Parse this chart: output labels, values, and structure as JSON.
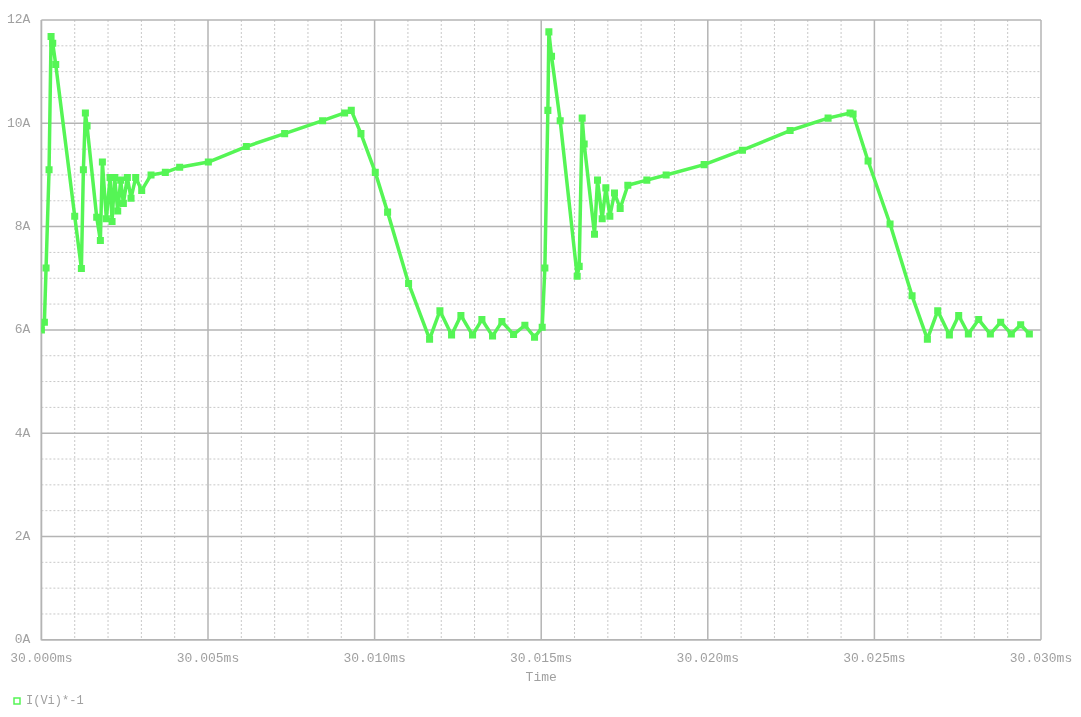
{
  "chart_data": {
    "type": "line",
    "xlabel": "Time",
    "x": [
      30.0,
      30.00009,
      30.00014,
      30.00023,
      30.00029,
      30.00034,
      30.00043,
      30.001,
      30.0012,
      30.00126,
      30.00132,
      30.00137,
      30.00166,
      30.00177,
      30.00183,
      30.00195,
      30.00206,
      30.00212,
      30.0022,
      30.00229,
      30.00238,
      30.00246,
      30.00258,
      30.00269,
      30.00283,
      30.00301,
      30.00329,
      30.00372,
      30.00415,
      30.00501,
      30.00615,
      30.0073,
      30.00844,
      30.0091,
      30.0093,
      30.00959,
      30.01002,
      30.01039,
      30.01102,
      30.01165,
      30.01196,
      30.01231,
      30.01259,
      30.01294,
      30.01322,
      30.01354,
      30.01382,
      30.01417,
      30.01451,
      30.0148,
      30.01503,
      30.01511,
      30.0152,
      30.01523,
      30.01531,
      30.01557,
      30.01608,
      30.01614,
      30.01623,
      30.01629,
      30.0166,
      30.01669,
      30.01683,
      30.01694,
      30.01706,
      30.0172,
      30.01737,
      30.0176,
      30.01817,
      30.01875,
      30.01989,
      30.02104,
      30.02247,
      30.02361,
      30.02427,
      30.02436,
      30.02481,
      30.02547,
      30.02613,
      30.02659,
      30.0269,
      30.02725,
      30.02753,
      30.02782,
      30.02813,
      30.02848,
      30.02879,
      30.02911,
      30.02939,
      30.02965
    ],
    "series": [
      {
        "name": "I(Vi)*-1",
        "color": "#55f555",
        "values": [
          6.0,
          6.15,
          7.2,
          9.1,
          11.68,
          11.55,
          11.14,
          8.2,
          7.19,
          9.1,
          10.2,
          9.95,
          8.18,
          7.73,
          9.25,
          8.15,
          8.95,
          8.1,
          8.95,
          8.3,
          8.9,
          8.45,
          8.95,
          8.55,
          8.95,
          8.7,
          9.0,
          9.05,
          9.15,
          9.25,
          9.55,
          9.8,
          10.05,
          10.2,
          10.25,
          9.8,
          9.05,
          8.28,
          6.9,
          5.82,
          6.37,
          5.9,
          6.28,
          5.9,
          6.2,
          5.88,
          6.16,
          5.91,
          6.09,
          5.86,
          6.05,
          7.2,
          10.25,
          11.77,
          11.3,
          10.05,
          7.04,
          7.23,
          10.1,
          9.6,
          7.85,
          8.9,
          8.15,
          8.75,
          8.2,
          8.65,
          8.35,
          8.8,
          8.9,
          9.0,
          9.2,
          9.48,
          9.86,
          10.1,
          10.2,
          10.18,
          9.27,
          8.05,
          6.66,
          5.82,
          6.37,
          5.9,
          6.28,
          5.92,
          6.2,
          5.92,
          6.15,
          5.92,
          6.1,
          5.92
        ]
      }
    ],
    "xlim": [
      30.0,
      30.03
    ],
    "xticks": [
      {
        "value": 30.0,
        "label": "30.000ms"
      },
      {
        "value": 30.001,
        "label": null
      },
      {
        "value": 30.002,
        "label": null
      },
      {
        "value": 30.003,
        "label": null
      },
      {
        "value": 30.004,
        "label": null
      },
      {
        "value": 30.005,
        "label": "30.005ms"
      },
      {
        "value": 30.006,
        "label": null
      },
      {
        "value": 30.007,
        "label": null
      },
      {
        "value": 30.008,
        "label": null
      },
      {
        "value": 30.009,
        "label": null
      },
      {
        "value": 30.01,
        "label": "30.010ms"
      },
      {
        "value": 30.011,
        "label": null
      },
      {
        "value": 30.012,
        "label": null
      },
      {
        "value": 30.013,
        "label": null
      },
      {
        "value": 30.014,
        "label": null
      },
      {
        "value": 30.015,
        "label": "30.015ms"
      },
      {
        "value": 30.016,
        "label": null
      },
      {
        "value": 30.017,
        "label": null
      },
      {
        "value": 30.018,
        "label": null
      },
      {
        "value": 30.019,
        "label": null
      },
      {
        "value": 30.02,
        "label": "30.020ms"
      },
      {
        "value": 30.021,
        "label": null
      },
      {
        "value": 30.022,
        "label": null
      },
      {
        "value": 30.023,
        "label": null
      },
      {
        "value": 30.024,
        "label": null
      },
      {
        "value": 30.025,
        "label": "30.025ms"
      },
      {
        "value": 30.026,
        "label": null
      },
      {
        "value": 30.027,
        "label": null
      },
      {
        "value": 30.028,
        "label": null
      },
      {
        "value": 30.029,
        "label": null
      },
      {
        "value": 30.03,
        "label": "30.030ms"
      }
    ],
    "ylim": [
      0,
      12
    ],
    "yticks": [
      {
        "value": 0,
        "label": "0A"
      },
      {
        "value": 0.5,
        "label": null
      },
      {
        "value": 1,
        "label": null
      },
      {
        "value": 1.5,
        "label": null
      },
      {
        "value": 2,
        "label": "2A"
      },
      {
        "value": 2.5,
        "label": null
      },
      {
        "value": 3,
        "label": null
      },
      {
        "value": 3.5,
        "label": null
      },
      {
        "value": 4,
        "label": "4A"
      },
      {
        "value": 4.5,
        "label": null
      },
      {
        "value": 5,
        "label": null
      },
      {
        "value": 5.5,
        "label": null
      },
      {
        "value": 6,
        "label": "6A"
      },
      {
        "value": 6.5,
        "label": null
      },
      {
        "value": 7,
        "label": null
      },
      {
        "value": 7.5,
        "label": null
      },
      {
        "value": 8,
        "label": "8A"
      },
      {
        "value": 8.5,
        "label": null
      },
      {
        "value": 9,
        "label": null
      },
      {
        "value": 9.5,
        "label": null
      },
      {
        "value": 10,
        "label": "10A"
      },
      {
        "value": 10.5,
        "label": null
      },
      {
        "value": 11,
        "label": null
      },
      {
        "value": 11.5,
        "label": null
      },
      {
        "value": 12,
        "label": "12A"
      }
    ],
    "grid": true,
    "legend": "bottom left",
    "marker": "square",
    "line_style": "solid"
  }
}
